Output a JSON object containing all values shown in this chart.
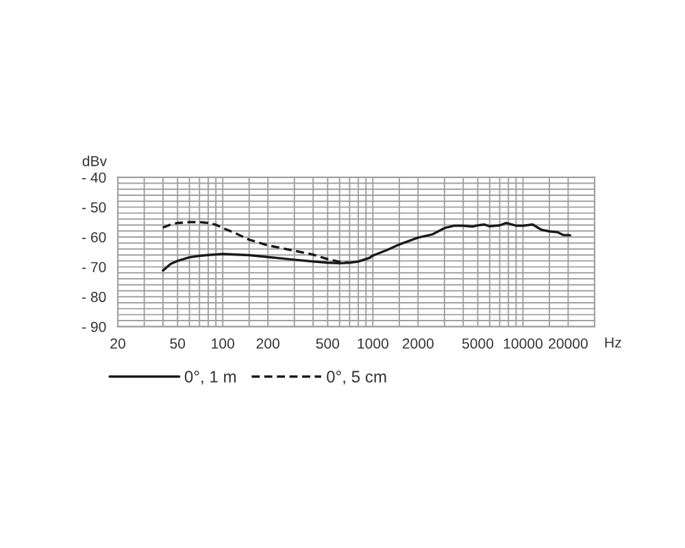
{
  "chart_data": {
    "type": "line",
    "xlabel": "Hz",
    "ylabel": "dBv",
    "log": "x",
    "grid": true,
    "legend": "bottom",
    "xlim": [
      20,
      30000
    ],
    "xticks": [
      20,
      {
        "value": 30,
        "label": null
      },
      {
        "value": 40,
        "label": null
      },
      50,
      {
        "value": 60,
        "label": null
      },
      {
        "value": 70,
        "label": null
      },
      {
        "value": 80,
        "label": null
      },
      {
        "value": 90,
        "label": null
      },
      100,
      {
        "value": 150,
        "label": null
      },
      200,
      {
        "value": 300,
        "label": null
      },
      {
        "value": 400,
        "label": null
      },
      500,
      {
        "value": 600,
        "label": null
      },
      {
        "value": 700,
        "label": null
      },
      {
        "value": 800,
        "label": null
      },
      {
        "value": 900,
        "label": null
      },
      1000,
      {
        "value": 1500,
        "label": null
      },
      2000,
      {
        "value": 3000,
        "label": null
      },
      {
        "value": 4000,
        "label": null
      },
      5000,
      {
        "value": 6000,
        "label": null
      },
      {
        "value": 7000,
        "label": null
      },
      {
        "value": 8000,
        "label": null
      },
      {
        "value": 9000,
        "label": null
      },
      10000,
      {
        "value": 15000,
        "label": null
      },
      20000
    ],
    "ylim": [
      -90,
      -40
    ],
    "yticks": [
      {
        "value": -90,
        "label": "- 90"
      },
      {
        "value": -88,
        "label": null
      },
      {
        "value": -86,
        "label": null
      },
      {
        "value": -84,
        "label": null
      },
      {
        "value": -82,
        "label": null
      },
      {
        "value": -80,
        "label": "- 80"
      },
      {
        "value": -78,
        "label": null
      },
      {
        "value": -76,
        "label": null
      },
      {
        "value": -74,
        "label": null
      },
      {
        "value": -72,
        "label": null
      },
      {
        "value": -70,
        "label": "- 70"
      },
      {
        "value": -68,
        "label": null
      },
      {
        "value": -66,
        "label": null
      },
      {
        "value": -64,
        "label": null
      },
      {
        "value": -62,
        "label": null
      },
      {
        "value": -60,
        "label": "- 60"
      },
      {
        "value": -58,
        "label": null
      },
      {
        "value": -56,
        "label": null
      },
      {
        "value": -54,
        "label": null
      },
      {
        "value": -52,
        "label": null
      },
      {
        "value": -50,
        "label": "- 50"
      },
      {
        "value": -48,
        "label": null
      },
      {
        "value": -46,
        "label": null
      },
      {
        "value": -44,
        "label": null
      },
      {
        "value": -42,
        "label": null
      },
      {
        "value": -40,
        "label": "- 40"
      }
    ],
    "series": [
      {
        "name": "0°, 1 m",
        "color": "#1a1a1a",
        "line_style": "solid",
        "x": [
          40,
          45,
          50,
          60,
          70,
          80,
          100,
          150,
          200,
          300,
          400,
          500,
          600,
          700,
          800,
          950,
          1000,
          1250,
          1500,
          2000,
          2500,
          3000,
          3500,
          4000,
          4600,
          5000,
          5500,
          6000,
          7000,
          7700,
          9000,
          10000,
          11600,
          13300,
          15000,
          17000,
          18500,
          20600
        ],
        "values": [
          -71.2,
          -69,
          -68,
          -66.8,
          -66.3,
          -66,
          -65.7,
          -66.1,
          -66.7,
          -67.6,
          -68.2,
          -68.6,
          -68.8,
          -68.6,
          -68.2,
          -67,
          -66.2,
          -64.3,
          -62.5,
          -60.2,
          -59.1,
          -57,
          -56.2,
          -56.2,
          -56.5,
          -56.1,
          -55.8,
          -56.4,
          -56.1,
          -55.3,
          -56.2,
          -56.2,
          -55.8,
          -57.6,
          -58.1,
          -58.4,
          -59.3,
          -59.4
        ]
      },
      {
        "name": "0°, 5 cm",
        "color": "#1a1a1a",
        "line_style": "dashed",
        "x": [
          40,
          45,
          50,
          60,
          70,
          80,
          90,
          100,
          120,
          150,
          200,
          300,
          400,
          500,
          600,
          700
        ],
        "values": [
          -56.8,
          -55.8,
          -55.3,
          -55,
          -55,
          -55.3,
          -55.9,
          -57,
          -58.6,
          -60.9,
          -62.8,
          -64.6,
          -65.9,
          -67.4,
          -68.3,
          -68.6
        ]
      }
    ]
  }
}
